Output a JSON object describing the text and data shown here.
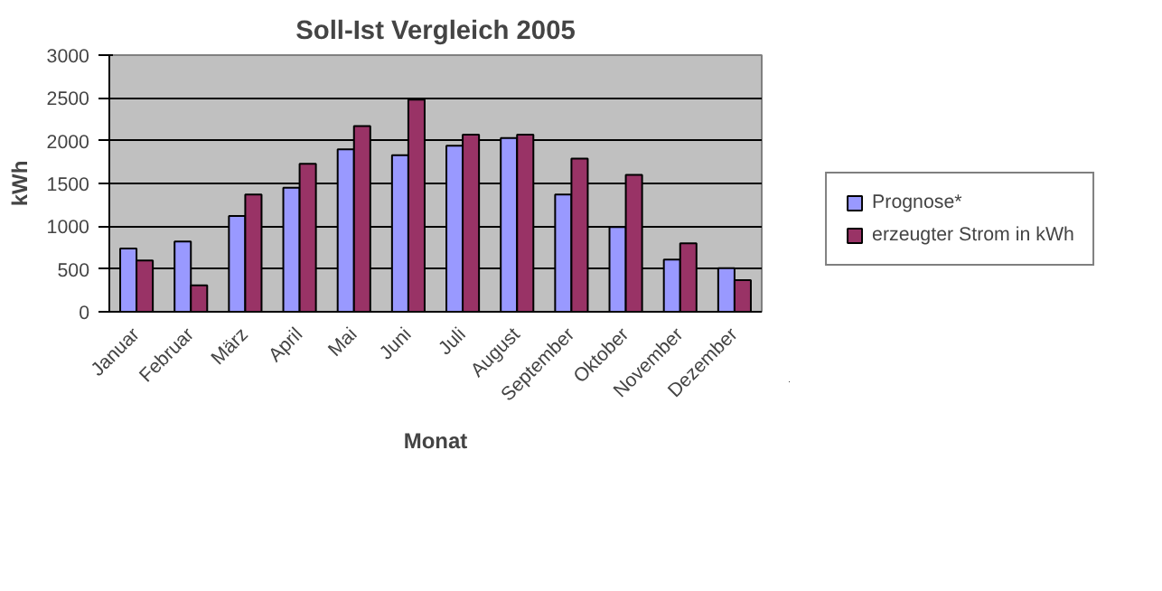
{
  "chart_data": {
    "type": "bar",
    "title": "Soll-Ist Vergleich 2005",
    "xlabel": "Monat",
    "ylabel": "kWh",
    "categories": [
      "Januar",
      "Februar",
      "März",
      "April",
      "Mai",
      "Juni",
      "Juli",
      "August",
      "September",
      "Oktober",
      "November",
      "Dezember"
    ],
    "series": [
      {
        "name": "Prognose*",
        "color": "#9999ff",
        "values": [
          740,
          820,
          1120,
          1450,
          1900,
          1830,
          1940,
          2030,
          1370,
          990,
          610,
          510
        ]
      },
      {
        "name": "erzeugter Strom in kWh",
        "color": "#993366",
        "values": [
          600,
          310,
          1370,
          1730,
          2170,
          2480,
          2070,
          2070,
          1790,
          1600,
          800,
          370
        ]
      }
    ],
    "ylim": [
      0,
      3000
    ],
    "yticks": [
      0,
      500,
      1000,
      1500,
      2000,
      2500,
      3000
    ],
    "grid": "y",
    "legend": "right"
  }
}
